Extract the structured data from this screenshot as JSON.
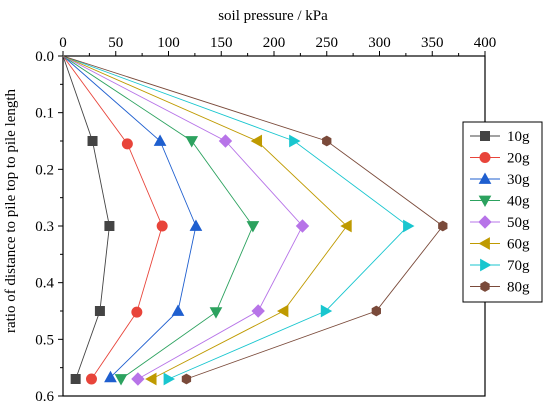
{
  "chart_data": {
    "type": "line",
    "xlabel": "soil pressure / kPa",
    "ylabel": "ratio of distance to pile top to pile length",
    "xlim": [
      0,
      400
    ],
    "ylim": [
      0.6,
      0.0
    ],
    "x_ticks": [
      "0",
      "50",
      "100",
      "150",
      "200",
      "250",
      "300",
      "350",
      "400"
    ],
    "y_ticks": [
      "0.0",
      "0.1",
      "0.2",
      "0.3",
      "0.4",
      "0.5",
      "0.6"
    ],
    "x_axis_position": "top",
    "y_inverted": true,
    "grid": false,
    "legend_position": "right",
    "series": [
      {
        "name": "10g",
        "color": "#444444",
        "marker": "square",
        "points": [
          [
            0,
            0.0
          ],
          [
            28,
            0.15
          ],
          [
            44,
            0.3
          ],
          [
            35,
            0.45
          ],
          [
            12,
            0.57
          ]
        ]
      },
      {
        "name": "20g",
        "color": "#e8443a",
        "marker": "circle",
        "points": [
          [
            0,
            0.0
          ],
          [
            61,
            0.155
          ],
          [
            94,
            0.3
          ],
          [
            70,
            0.452
          ],
          [
            27,
            0.57
          ]
        ]
      },
      {
        "name": "30g",
        "color": "#1f5fcf",
        "marker": "triangle-up",
        "points": [
          [
            0,
            0.0
          ],
          [
            92,
            0.15
          ],
          [
            126,
            0.3
          ],
          [
            109,
            0.45
          ],
          [
            45,
            0.567
          ]
        ]
      },
      {
        "name": "40g",
        "color": "#2ca25f",
        "marker": "triangle-down",
        "points": [
          [
            0,
            0.0
          ],
          [
            122,
            0.15
          ],
          [
            180,
            0.3
          ],
          [
            145,
            0.452
          ],
          [
            55,
            0.57
          ]
        ]
      },
      {
        "name": "50g",
        "color": "#b774e8",
        "marker": "diamond",
        "points": [
          [
            0,
            0.0
          ],
          [
            154,
            0.15
          ],
          [
            227,
            0.3
          ],
          [
            185,
            0.45
          ],
          [
            71,
            0.57
          ]
        ]
      },
      {
        "name": "60g",
        "color": "#bf9a00",
        "marker": "triangle-left",
        "points": [
          [
            0,
            0.0
          ],
          [
            184,
            0.15
          ],
          [
            269,
            0.3
          ],
          [
            209,
            0.45
          ],
          [
            84,
            0.57
          ]
        ]
      },
      {
        "name": "70g",
        "color": "#19c6cf",
        "marker": "triangle-right",
        "points": [
          [
            0,
            0.0
          ],
          [
            219,
            0.15
          ],
          [
            327,
            0.3
          ],
          [
            249,
            0.45
          ],
          [
            100,
            0.57
          ]
        ]
      },
      {
        "name": "80g",
        "color": "#7a4a3a",
        "marker": "hexagon",
        "points": [
          [
            0,
            0.0
          ],
          [
            250,
            0.15
          ],
          [
            360,
            0.3
          ],
          [
            297,
            0.45
          ],
          [
            117,
            0.57
          ]
        ]
      }
    ]
  }
}
